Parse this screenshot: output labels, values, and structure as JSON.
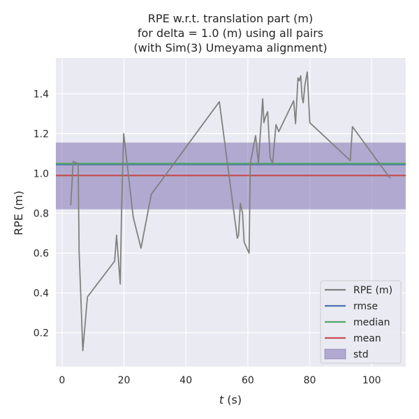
{
  "chart_data": {
    "type": "line",
    "title_lines": [
      "RPE w.r.t. translation part (m)",
      "for delta = 1.0 (m) using all pairs",
      "(with Sim(3) Umeyama alignment)"
    ],
    "xlabel_italic": "t",
    "xlabel_rest": " (s)",
    "ylabel": "RPE (m)",
    "xlim": [
      -2,
      111
    ],
    "ylim": [
      0.03,
      1.58
    ],
    "xticks": [
      0,
      20,
      40,
      60,
      80,
      100
    ],
    "yticks": [
      0.2,
      0.4,
      0.6,
      0.8,
      1.0,
      1.2,
      1.4
    ],
    "ytick_labels": [
      "0.2",
      "0.4",
      "0.6",
      "0.8",
      "1.0",
      "1.2",
      "1.4"
    ],
    "grid": true,
    "legend_position": "lower-right",
    "series": [
      {
        "name": "RPE (m)",
        "color": "#808080",
        "x": [
          2.8,
          3.6,
          5.2,
          5.5,
          6.7,
          8.2,
          17.0,
          17.6,
          18.8,
          19.2,
          19.9,
          23.0,
          25.5,
          28.8,
          50.8,
          56.6,
          57.0,
          57.6,
          58.3,
          58.8,
          60.4,
          60.8,
          62.5,
          63.4,
          64.8,
          65.2,
          65.7,
          66.4,
          67.2,
          68.0,
          69.1,
          70.0,
          74.8,
          75.4,
          76.2,
          76.6,
          77.1,
          77.5,
          77.9,
          78.4,
          79.2,
          80.0,
          93.1,
          93.8,
          106.0
        ],
        "y": [
          0.84,
          1.06,
          1.05,
          0.61,
          0.11,
          0.38,
          0.56,
          0.69,
          0.445,
          0.8,
          1.2,
          0.78,
          0.625,
          0.895,
          1.36,
          0.675,
          0.69,
          0.85,
          0.8,
          0.655,
          0.6,
          1.05,
          1.19,
          1.05,
          1.375,
          1.255,
          1.285,
          1.31,
          1.08,
          1.05,
          1.245,
          1.21,
          1.365,
          1.25,
          1.48,
          1.465,
          1.49,
          1.385,
          1.355,
          1.44,
          1.51,
          1.255,
          1.065,
          1.235,
          0.975
        ]
      }
    ],
    "hlines": [
      {
        "name": "rmse",
        "value": 1.045,
        "color": "#4c72b0"
      },
      {
        "name": "median",
        "value": 1.05,
        "color": "#55a868"
      },
      {
        "name": "mean",
        "value": 0.99,
        "color": "#c44e52"
      }
    ],
    "band": {
      "name": "std",
      "low": 0.82,
      "high": 1.155,
      "color": "#8172b3",
      "opacity": 0.55
    }
  }
}
